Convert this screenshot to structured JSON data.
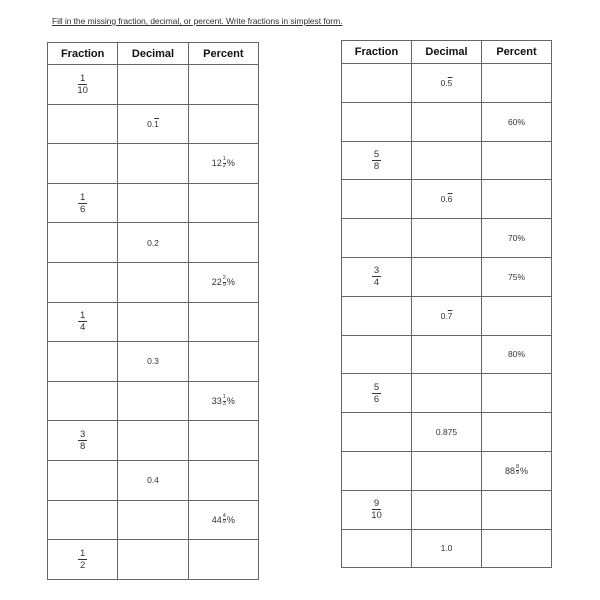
{
  "instructions": "Fill in the missing fraction, decimal, or percent.  Write fractions in simplest form.",
  "tables": [
    {
      "headers": [
        "Fraction",
        "Decimal",
        "Percent"
      ],
      "rows": [
        [
          {
            "type": "fraction",
            "num": "1",
            "den": "10"
          },
          null,
          null
        ],
        [
          null,
          {
            "type": "repeating",
            "whole": "0.",
            "repeat": "1"
          },
          null
        ],
        [
          null,
          null,
          {
            "type": "mixed_percent",
            "whole": "12",
            "num": "1",
            "den": "2"
          }
        ],
        [
          {
            "type": "fraction",
            "num": "1",
            "den": "6"
          },
          null,
          null
        ],
        [
          null,
          {
            "type": "text",
            "value": "0.2"
          },
          null
        ],
        [
          null,
          null,
          {
            "type": "mixed_percent",
            "whole": "22",
            "num": "2",
            "den": "9"
          }
        ],
        [
          {
            "type": "fraction",
            "num": "1",
            "den": "4"
          },
          null,
          null
        ],
        [
          null,
          {
            "type": "text",
            "value": "0.3"
          },
          null
        ],
        [
          null,
          null,
          {
            "type": "mixed_percent",
            "whole": "33",
            "num": "1",
            "den": "3"
          }
        ],
        [
          {
            "type": "fraction",
            "num": "3",
            "den": "8"
          },
          null,
          null
        ],
        [
          null,
          {
            "type": "text",
            "value": "0.4"
          },
          null
        ],
        [
          null,
          null,
          {
            "type": "mixed_percent",
            "whole": "44",
            "num": "4",
            "den": "9"
          }
        ],
        [
          {
            "type": "fraction",
            "num": "1",
            "den": "2"
          },
          null,
          null
        ]
      ]
    },
    {
      "headers": [
        "Fraction",
        "Decimal",
        "Percent"
      ],
      "rows": [
        [
          null,
          {
            "type": "repeating",
            "whole": "0.",
            "repeat": "5"
          },
          null
        ],
        [
          null,
          null,
          {
            "type": "text",
            "value": "60%"
          }
        ],
        [
          {
            "type": "fraction",
            "num": "5",
            "den": "8"
          },
          null,
          null
        ],
        [
          null,
          {
            "type": "repeating",
            "whole": "0.",
            "repeat": "6"
          },
          null
        ],
        [
          null,
          null,
          {
            "type": "text",
            "value": "70%"
          }
        ],
        [
          {
            "type": "fraction",
            "num": "3",
            "den": "4"
          },
          null,
          {
            "type": "text",
            "value": "75%"
          }
        ],
        [
          null,
          {
            "type": "repeating",
            "whole": "0.",
            "repeat": "7"
          },
          null
        ],
        [
          null,
          null,
          {
            "type": "text",
            "value": "80%"
          }
        ],
        [
          {
            "type": "fraction",
            "num": "5",
            "den": "6"
          },
          null,
          null
        ],
        [
          null,
          {
            "type": "text",
            "value": "0.875"
          },
          null
        ],
        [
          null,
          null,
          {
            "type": "mixed_percent",
            "whole": "88",
            "num": "8",
            "den": "9"
          }
        ],
        [
          {
            "type": "fraction",
            "num": "9",
            "den": "10"
          },
          null,
          null
        ],
        [
          null,
          {
            "type": "text",
            "value": "1.0"
          },
          null
        ]
      ]
    }
  ]
}
